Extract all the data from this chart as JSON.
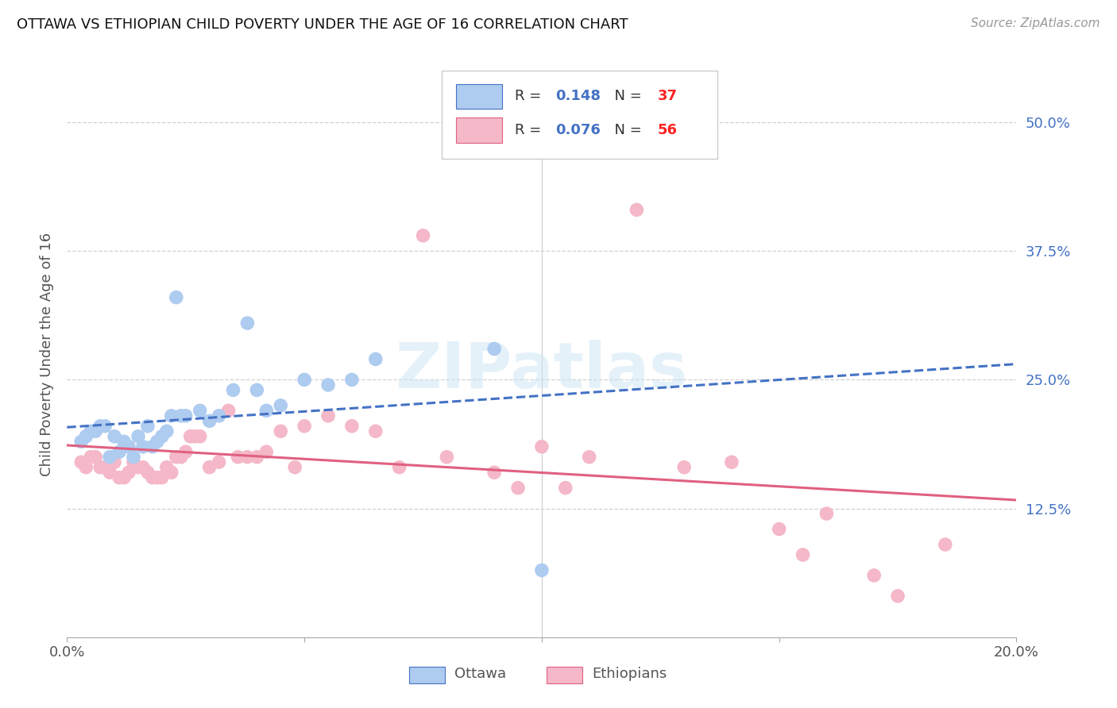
{
  "title": "OTTAWA VS ETHIOPIAN CHILD POVERTY UNDER THE AGE OF 16 CORRELATION CHART",
  "source": "Source: ZipAtlas.com",
  "ylabel": "Child Poverty Under the Age of 16",
  "xlim": [
    0.0,
    0.2
  ],
  "ylim": [
    0.0,
    0.55
  ],
  "xtick_positions": [
    0.0,
    0.05,
    0.1,
    0.15,
    0.2
  ],
  "xtick_labels": [
    "0.0%",
    "",
    "",
    "",
    "20.0%"
  ],
  "ytick_values": [
    0.125,
    0.25,
    0.375,
    0.5
  ],
  "ytick_labels": [
    "12.5%",
    "25.0%",
    "37.5%",
    "50.0%"
  ],
  "watermark": "ZIPatlas",
  "ottawa_color": "#aecbf0",
  "ethiopian_color": "#f4b8c8",
  "ottawa_line_color": "#4472c4",
  "ethiopian_line_color": "#e06080",
  "ottawa_R": "0.148",
  "ottawa_N": "37",
  "ethiopian_R": "0.076",
  "ethiopian_N": "56",
  "ottawa_x": [
    0.003,
    0.004,
    0.005,
    0.006,
    0.007,
    0.008,
    0.009,
    0.01,
    0.011,
    0.012,
    0.013,
    0.014,
    0.015,
    0.016,
    0.017,
    0.018,
    0.019,
    0.02,
    0.021,
    0.022,
    0.023,
    0.024,
    0.025,
    0.028,
    0.03,
    0.032,
    0.035,
    0.038,
    0.04,
    0.042,
    0.045,
    0.05,
    0.055,
    0.06,
    0.065,
    0.09,
    0.1
  ],
  "ottawa_y": [
    0.19,
    0.195,
    0.2,
    0.2,
    0.205,
    0.205,
    0.175,
    0.195,
    0.18,
    0.19,
    0.185,
    0.175,
    0.195,
    0.185,
    0.205,
    0.185,
    0.19,
    0.195,
    0.2,
    0.215,
    0.33,
    0.215,
    0.215,
    0.22,
    0.21,
    0.215,
    0.24,
    0.305,
    0.24,
    0.22,
    0.225,
    0.25,
    0.245,
    0.25,
    0.27,
    0.28,
    0.065
  ],
  "ethiopian_x": [
    0.003,
    0.004,
    0.005,
    0.006,
    0.007,
    0.008,
    0.009,
    0.01,
    0.011,
    0.012,
    0.013,
    0.014,
    0.015,
    0.016,
    0.017,
    0.018,
    0.019,
    0.02,
    0.021,
    0.022,
    0.023,
    0.024,
    0.025,
    0.026,
    0.027,
    0.028,
    0.03,
    0.032,
    0.034,
    0.036,
    0.038,
    0.04,
    0.042,
    0.045,
    0.048,
    0.05,
    0.055,
    0.06,
    0.065,
    0.07,
    0.075,
    0.08,
    0.09,
    0.095,
    0.1,
    0.105,
    0.11,
    0.12,
    0.13,
    0.14,
    0.15,
    0.155,
    0.16,
    0.17,
    0.175,
    0.185
  ],
  "ethiopian_y": [
    0.17,
    0.165,
    0.175,
    0.175,
    0.165,
    0.165,
    0.16,
    0.17,
    0.155,
    0.155,
    0.16,
    0.17,
    0.165,
    0.165,
    0.16,
    0.155,
    0.155,
    0.155,
    0.165,
    0.16,
    0.175,
    0.175,
    0.18,
    0.195,
    0.195,
    0.195,
    0.165,
    0.17,
    0.22,
    0.175,
    0.175,
    0.175,
    0.18,
    0.2,
    0.165,
    0.205,
    0.215,
    0.205,
    0.2,
    0.165,
    0.39,
    0.175,
    0.16,
    0.145,
    0.185,
    0.145,
    0.175,
    0.415,
    0.165,
    0.17,
    0.105,
    0.08,
    0.12,
    0.06,
    0.04,
    0.09
  ],
  "background_color": "#ffffff",
  "grid_color": "#d0d0d0",
  "vline_x": 0.1
}
